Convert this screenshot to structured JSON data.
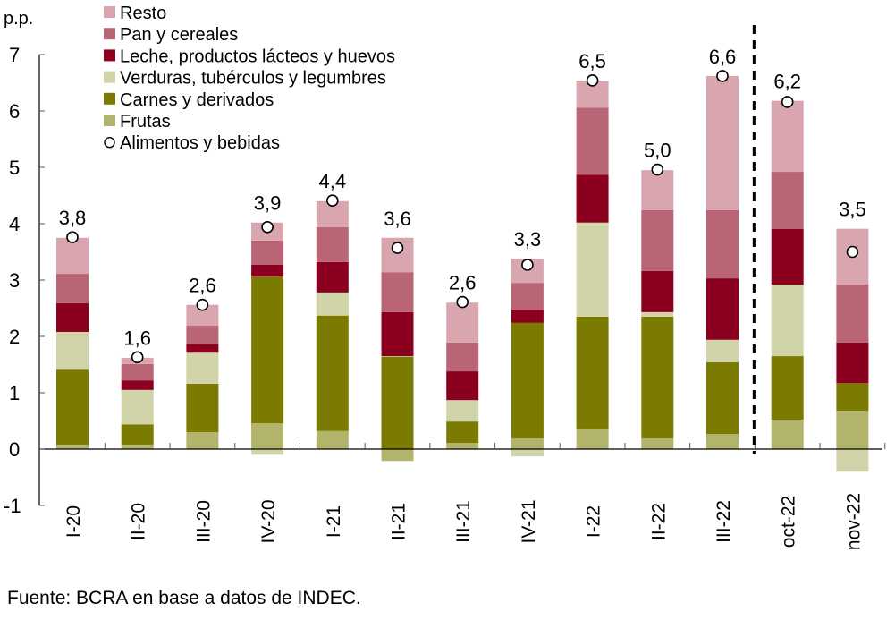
{
  "chart_data": {
    "type": "bar",
    "stacked": true,
    "title": "",
    "ylabel": "p.p.",
    "xlabel": "",
    "ylim": [
      -1,
      7
    ],
    "yticks": [
      -1,
      0,
      1,
      2,
      3,
      4,
      5,
      6,
      7
    ],
    "grid": false,
    "legend_position": "top-left",
    "categories": [
      "I-20",
      "II-20",
      "III-20",
      "IV-20",
      "I-21",
      "II-21",
      "III-21",
      "IV-21",
      "I-22",
      "II-22",
      "III-22",
      "oct-22",
      "nov-22"
    ],
    "separator_after_category": "III-22",
    "series": [
      {
        "name": "Frutas",
        "color": "#B1B46A",
        "values": [
          0.08,
          0.08,
          0.3,
          0.46,
          0.32,
          -0.21,
          0.11,
          0.19,
          0.35,
          0.19,
          0.27,
          0.52,
          0.68
        ]
      },
      {
        "name": "Carnes y derivados",
        "color": "#7A7B00",
        "values": [
          1.33,
          0.36,
          0.86,
          2.6,
          2.05,
          1.64,
          0.38,
          2.05,
          2.0,
          2.16,
          1.27,
          1.13,
          0.49
        ]
      },
      {
        "name": "Verduras, tubérculos y legumbres",
        "color": "#D1D3A8",
        "values": [
          0.67,
          0.61,
          0.55,
          -0.1,
          0.41,
          0.01,
          0.38,
          -0.13,
          1.67,
          0.08,
          0.4,
          1.27,
          -0.4
        ]
      },
      {
        "name": "Leche, productos lácteos y huevos",
        "color": "#8B001E",
        "values": [
          0.51,
          0.17,
          0.16,
          0.21,
          0.54,
          0.78,
          0.51,
          0.24,
          0.85,
          0.73,
          1.09,
          0.99,
          0.72
        ]
      },
      {
        "name": "Pan y cereales",
        "color": "#BA6575",
        "values": [
          0.52,
          0.29,
          0.32,
          0.43,
          0.62,
          0.71,
          0.51,
          0.47,
          1.19,
          1.08,
          1.21,
          1.01,
          1.03
        ]
      },
      {
        "name": "Resto",
        "color": "#D9A6B0",
        "values": [
          0.64,
          0.11,
          0.37,
          0.32,
          0.46,
          0.61,
          0.71,
          0.43,
          0.48,
          0.71,
          2.38,
          1.26,
          0.99
        ]
      }
    ],
    "total_series": {
      "name": "Alimentos y bebidas",
      "marker": "circle",
      "values": [
        3.76,
        1.63,
        2.56,
        3.94,
        4.41,
        3.57,
        2.61,
        3.27,
        6.54,
        4.96,
        6.62,
        6.16,
        3.5
      ],
      "labels": [
        "3,8",
        "1,6",
        "2,6",
        "3,9",
        "4,4",
        "3,6",
        "2,6",
        "3,3",
        "6,5",
        "5,0",
        "6,6",
        "6,2",
        "3,5"
      ]
    },
    "legend_order": [
      "Resto",
      "Pan y cereales",
      "Leche, productos lácteos y huevos",
      "Verduras, tubérculos y legumbres",
      "Carnes y derivados",
      "Frutas",
      "Alimentos y bebidas"
    ]
  },
  "source": "Fuente: BCRA en base a datos de INDEC."
}
